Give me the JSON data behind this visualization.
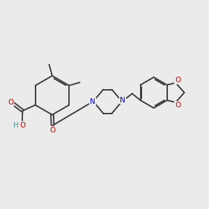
{
  "bg_color": "#ebebeb",
  "bond_color": "#3a3a3a",
  "oxygen_color": "#cc0000",
  "nitrogen_color": "#0000cc",
  "hydrogen_color": "#4a8a8a",
  "line_width": 1.4,
  "figsize": [
    3.0,
    3.0
  ],
  "dpi": 100,
  "xlim": [
    0,
    10
  ],
  "ylim": [
    0,
    10
  ]
}
